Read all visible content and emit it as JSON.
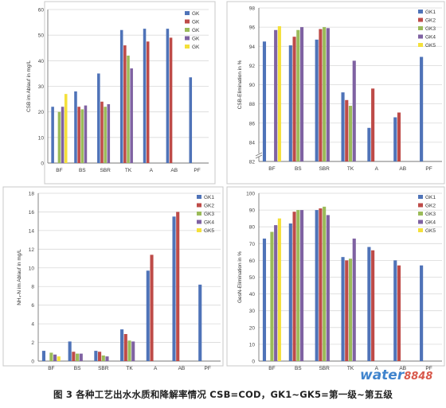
{
  "caption": "图 3   各种工艺出水水质和降解率情况   CSB=COD，GK1~GK5=第一级~第五级",
  "watermark": {
    "brand": "water",
    "number": "8848"
  },
  "colors": {
    "GK1": "#4f73b8",
    "GK2": "#be4b48",
    "GK3": "#9bbb59",
    "GK4": "#7f62a2",
    "GK5": "#f4e03a"
  },
  "chart_data": [
    {
      "type": "bar",
      "title": "",
      "xlabel": "",
      "ylabel": "CSB im Ablauf in mg/L",
      "categories": [
        "BF",
        "BS",
        "SBR",
        "TK",
        "A",
        "AB",
        "PF"
      ],
      "ylim": [
        0,
        60
      ],
      "yticks": [
        0,
        10,
        20,
        30,
        40,
        50,
        60
      ],
      "legend": "top-right",
      "series": [
        {
          "name": "GK",
          "values": [
            22,
            28,
            35,
            52,
            52.5,
            52.5,
            33.5
          ]
        },
        {
          "name": "GK",
          "values": [
            null,
            22,
            24,
            46,
            47.5,
            49,
            null
          ]
        },
        {
          "name": "GK",
          "values": [
            20,
            21,
            22,
            42,
            null,
            null,
            null
          ]
        },
        {
          "name": "GK",
          "values": [
            22,
            22.5,
            23,
            37,
            null,
            null,
            null
          ]
        },
        {
          "name": "GK",
          "values": [
            27,
            null,
            null,
            null,
            null,
            null,
            null
          ]
        }
      ]
    },
    {
      "type": "bar",
      "title": "",
      "xlabel": "",
      "ylabel": "CSB-Elimination in %",
      "categories": [
        "BF",
        "BS",
        "SBR",
        "TK",
        "A",
        "AB",
        "PF"
      ],
      "ylim": [
        82,
        98
      ],
      "yticks": [
        82,
        84,
        86,
        88,
        90,
        92,
        94,
        96,
        98
      ],
      "axis_break": true,
      "legend": "top-right",
      "series": [
        {
          "name": "GK1",
          "values": [
            94.5,
            94.1,
            94.7,
            89.2,
            85.5,
            86.6,
            92.9
          ]
        },
        {
          "name": "GK2",
          "values": [
            null,
            95.0,
            95.8,
            88.4,
            89.6,
            87.1,
            null
          ]
        },
        {
          "name": "GK3",
          "values": [
            null,
            95.7,
            96.0,
            87.8,
            null,
            null,
            null
          ]
        },
        {
          "name": "GK4",
          "values": [
            95.7,
            96.0,
            95.9,
            92.5,
            null,
            null,
            null
          ]
        },
        {
          "name": "GK5",
          "values": [
            96.1,
            null,
            null,
            null,
            null,
            null,
            null
          ]
        }
      ]
    },
    {
      "type": "bar",
      "title": "",
      "xlabel": "",
      "ylabel": "NH₄-N im Ablauf in mg/L",
      "categories": [
        "BF",
        "BS",
        "SBR",
        "TK",
        "A",
        "AB",
        "PF"
      ],
      "ylim": [
        0,
        18
      ],
      "yticks": [
        0,
        2,
        4,
        6,
        8,
        10,
        12,
        14,
        16,
        18
      ],
      "legend": "top-right",
      "series": [
        {
          "name": "GK1",
          "values": [
            1.1,
            2.1,
            1.1,
            3.4,
            9.7,
            15.5,
            8.2
          ]
        },
        {
          "name": "GK2",
          "values": [
            null,
            1.0,
            1.0,
            2.9,
            11.4,
            16.0,
            null
          ]
        },
        {
          "name": "GK3",
          "values": [
            0.9,
            0.8,
            0.6,
            2.2,
            null,
            null,
            null
          ]
        },
        {
          "name": "GK4",
          "values": [
            0.7,
            0.8,
            0.5,
            2.1,
            null,
            null,
            null
          ]
        },
        {
          "name": "GK5",
          "values": [
            0.5,
            null,
            null,
            null,
            null,
            null,
            null
          ]
        }
      ]
    },
    {
      "type": "bar",
      "title": "",
      "xlabel": "",
      "ylabel": "GesN-Elimination in %",
      "categories": [
        "BF",
        "BS",
        "SBR",
        "TK",
        "A",
        "AB",
        "PF"
      ],
      "ylim": [
        0,
        100
      ],
      "yticks": [
        0,
        10,
        20,
        30,
        40,
        50,
        60,
        70,
        80,
        90,
        100
      ],
      "legend": "top-right",
      "series": [
        {
          "name": "GK1",
          "values": [
            73,
            82,
            90,
            62,
            68,
            60,
            57
          ]
        },
        {
          "name": "GK2",
          "values": [
            null,
            89,
            91,
            60,
            66,
            57,
            null
          ]
        },
        {
          "name": "GK3",
          "values": [
            77,
            90,
            92,
            61,
            null,
            null,
            null
          ]
        },
        {
          "name": "GK4",
          "values": [
            81,
            90,
            87,
            73,
            null,
            null,
            null
          ]
        },
        {
          "name": "GK5",
          "values": [
            85,
            null,
            null,
            null,
            null,
            null,
            null
          ]
        }
      ]
    }
  ]
}
